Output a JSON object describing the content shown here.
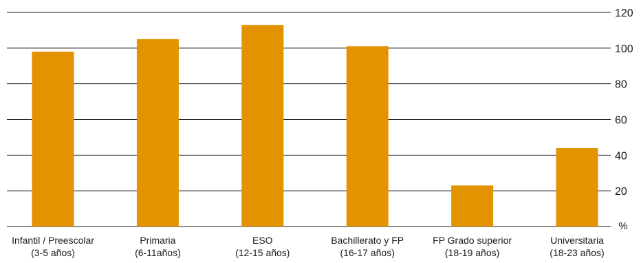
{
  "chart_data": {
    "type": "bar",
    "title": "",
    "xlabel": "",
    "ylabel": "",
    "y_unit_label": "%",
    "categories": [
      [
        "Infantil / Preescolar",
        "(3-5 años)"
      ],
      [
        "Primaria",
        "(6-11años)"
      ],
      [
        "ESO",
        "(12-15 años)"
      ],
      [
        "Bachillerato y FP",
        "(16-17 años)"
      ],
      [
        "FP Grado superior",
        "(18-19 años)"
      ],
      [
        "Universitaria",
        "(18-23 años)"
      ]
    ],
    "values": [
      98,
      105,
      113,
      101,
      23,
      44
    ],
    "ylim": [
      0,
      120
    ],
    "yticks": [
      20,
      40,
      60,
      80,
      100,
      120
    ],
    "grid": true,
    "legend": "none",
    "colors": {
      "bar": "#E39300",
      "grid": "#1a1a1a",
      "text": "#1a1a1a"
    }
  }
}
